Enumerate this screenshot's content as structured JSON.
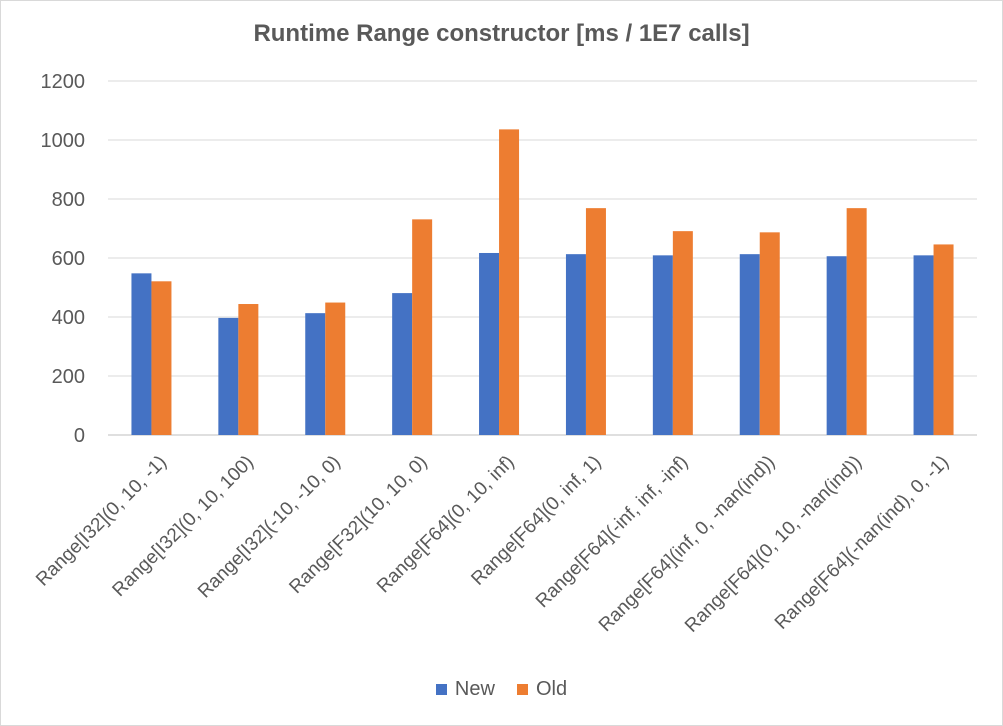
{
  "chart_data": {
    "type": "bar",
    "title": "Runtime Range constructor [ms / 1E7 calls]",
    "xlabel": "",
    "ylabel": "",
    "ylim": [
      0,
      1200
    ],
    "yticks": [
      0,
      200,
      400,
      600,
      800,
      1000,
      1200
    ],
    "grid": true,
    "legend_position": "bottom",
    "categories": [
      "Range[I32](0, 10, -1)",
      "Range[I32](0, 10, 100)",
      "Range[I32](-10, -10, 0)",
      "Range[F32](10, 10, 0)",
      "Range[F64](0, 10, inf)",
      "Range[F64](0, inf, 1)",
      "Range[F64](-inf, inf, -inf)",
      "Range[F64](inf, 0, -nan(ind))",
      "Range[F64](0, 10, -nan(ind))",
      "Range[F64](-nan(ind), 0, -1)"
    ],
    "series": [
      {
        "name": "New",
        "color": "#4472c4",
        "values": [
          548,
          397,
          413,
          481,
          617,
          613,
          609,
          613,
          606,
          609
        ]
      },
      {
        "name": "Old",
        "color": "#ed7d31",
        "values": [
          521,
          444,
          449,
          731,
          1036,
          769,
          691,
          687,
          769,
          646
        ]
      }
    ]
  }
}
